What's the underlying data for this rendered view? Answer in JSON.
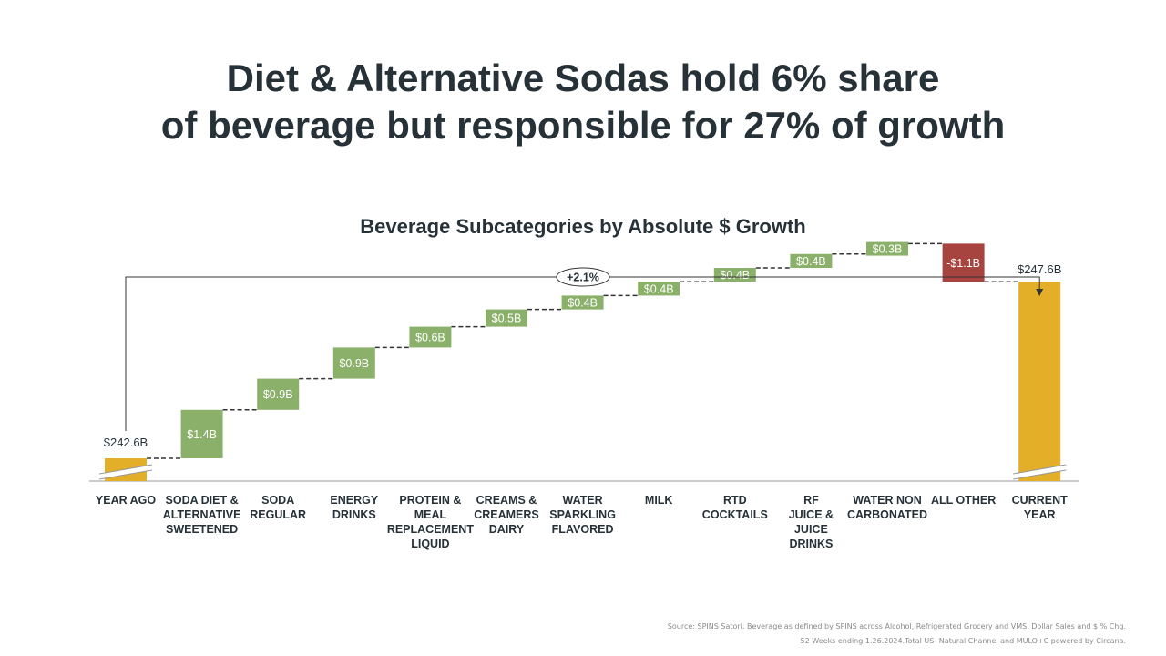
{
  "headline": {
    "line1": "Diet & Alternative Sodas hold 6% share",
    "line2": "of beverage but responsible for 27% of growth"
  },
  "chart_data": {
    "type": "bar",
    "subtype": "waterfall",
    "title": "Beverage Subcategories by Absolute $ Growth",
    "unit": "$B",
    "axis_break": true,
    "start": {
      "category": [
        "YEAR AGO"
      ],
      "value": 242.6,
      "label": "$242.6B"
    },
    "end": {
      "category": [
        "CURRENT",
        "YEAR"
      ],
      "value": 247.6,
      "label": "$247.6B"
    },
    "steps": [
      {
        "category": [
          "SODA DIET &",
          "ALTERNATIVE",
          "SWEETENED"
        ],
        "value": 1.4,
        "label": "$1.4B"
      },
      {
        "category": [
          "SODA",
          "REGULAR"
        ],
        "value": 0.9,
        "label": "$0.9B"
      },
      {
        "category": [
          "ENERGY",
          "DRINKS"
        ],
        "value": 0.9,
        "label": "$0.9B"
      },
      {
        "category": [
          "PROTEIN &",
          "MEAL",
          "REPLACEMENT",
          "LIQUID"
        ],
        "value": 0.6,
        "label": "$0.6B"
      },
      {
        "category": [
          "CREAMS &",
          "CREAMERS",
          "DAIRY"
        ],
        "value": 0.5,
        "label": "$0.5B"
      },
      {
        "category": [
          "WATER",
          "SPARKLING",
          "FLAVORED"
        ],
        "value": 0.4,
        "label": "$0.4B"
      },
      {
        "category": [
          "MILK"
        ],
        "value": 0.4,
        "label": "$0.4B"
      },
      {
        "category": [
          "RTD",
          "COCKTAILS"
        ],
        "value": 0.4,
        "label": "$0.4B"
      },
      {
        "category": [
          "RF",
          "JUICE &",
          "JUICE",
          "DRINKS"
        ],
        "value": 0.4,
        "label": "$0.4B"
      },
      {
        "category": [
          "WATER NON",
          "CARBONATED"
        ],
        "value": 0.3,
        "label": "$0.3B"
      },
      {
        "category": [
          "ALL OTHER"
        ],
        "value": -1.1,
        "label": "-$1.1B"
      }
    ],
    "change_annotation": "+2.1%",
    "colors": {
      "total": "#E3AE28",
      "increase": "#8BB06A",
      "decrease": "#A8443F",
      "text": "#263238"
    }
  },
  "source": {
    "line1": "Source: SPINS Satori. Beverage as defined by SPINS across Alcohol, Refrigerated Grocery and VMS. Dollar Sales and $ % Chg.",
    "line2": "52 Weeks ending 1.26.2024.Total US- Natural Channel and MULO+C powered by Circana."
  }
}
